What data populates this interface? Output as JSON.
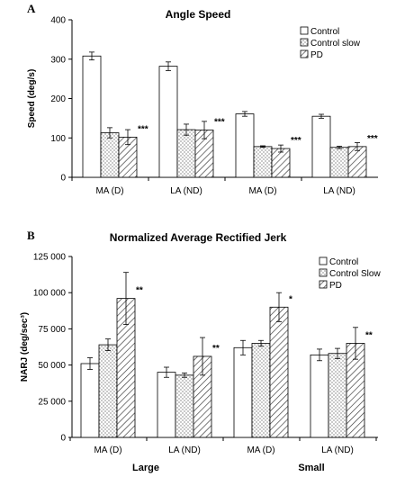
{
  "chart_data": [
    {
      "panel": "A",
      "type": "bar",
      "title": "Angle Speed",
      "ylabel": "Speed (deg/s)",
      "xlabel": "",
      "ylim": [
        0,
        400
      ],
      "yticks": [
        "0",
        "100",
        "200",
        "300",
        "400"
      ],
      "categories": [
        "MA (D)",
        "LA (ND)",
        "MA (D)",
        "LA (ND)"
      ],
      "series": [
        {
          "name": "Control",
          "pattern": "white",
          "values": [
            308,
            282,
            161,
            155
          ],
          "errors": [
            10,
            11,
            6,
            5
          ]
        },
        {
          "name": "Control slow",
          "pattern": "dots",
          "values": [
            113,
            121,
            78,
            76
          ],
          "errors": [
            13,
            14,
            2,
            3
          ]
        },
        {
          "name": "PD",
          "pattern": "hatch",
          "values": [
            102,
            120,
            73,
            78
          ],
          "errors": [
            19,
            22,
            9,
            10
          ]
        }
      ],
      "annotations": [
        "***",
        "***",
        "***",
        "***"
      ],
      "legend": "top-right",
      "grid": false
    },
    {
      "panel": "B",
      "type": "bar",
      "title": "Normalized Average Rectified Jerk",
      "ylabel": "NARJ (deg/sec³)",
      "xlabel": "",
      "ylim": [
        0,
        125000
      ],
      "yticks": [
        "0",
        "25 000",
        "50 000",
        "75 000",
        "100 000",
        "125 000"
      ],
      "categories": [
        "MA (D)",
        "LA (ND)",
        "MA (D)",
        "LA (ND)"
      ],
      "group_labels": [
        "Large",
        "Small"
      ],
      "series": [
        {
          "name": "Control",
          "pattern": "white",
          "values": [
            51000,
            45000,
            62000,
            57000
          ],
          "errors": [
            4000,
            3500,
            5000,
            4000
          ]
        },
        {
          "name": "Control Slow",
          "pattern": "dots",
          "values": [
            64000,
            43000,
            65000,
            58000
          ],
          "errors": [
            4000,
            1500,
            2000,
            3500
          ]
        },
        {
          "name": "PD",
          "pattern": "hatch",
          "values": [
            96000,
            56000,
            90000,
            65000
          ],
          "errors": [
            18000,
            13000,
            10000,
            11000
          ]
        }
      ],
      "annotations": [
        "**",
        "**",
        "*",
        "**"
      ],
      "legend": "top-right",
      "grid": false
    }
  ]
}
